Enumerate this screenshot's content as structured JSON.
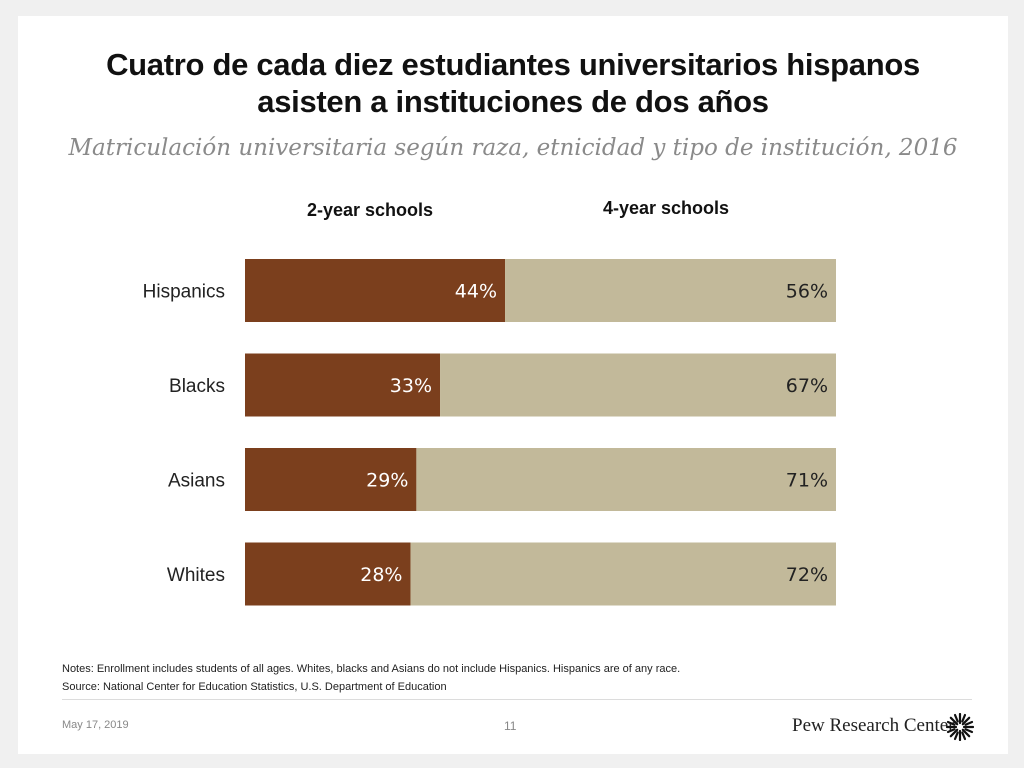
{
  "title_line1": "Cuatro de cada diez estudiantes universitarios hispanos",
  "title_line2": "asisten a instituciones de dos años",
  "subtitle": "Matriculación universitaria según raza, etnicidad y tipo de institución, 2016",
  "notes": "Notes: Enrollment includes students of all ages. Whites, blacks and Asians do not include Hispanics. Hispanics are of any race.",
  "source": "Source: National Center for Education Statistics, U.S. Department of Education",
  "footer": {
    "date": "May 17, 2019",
    "page": "11",
    "brand": "Pew Research Center",
    "logo_icon": "pew-sunburst-icon"
  },
  "colors": {
    "two_year": "#7b3f1d",
    "four_year": "#c2b99a",
    "label_text": "#ffffff",
    "category_text": "#222222"
  },
  "chart_data": {
    "type": "bar",
    "orientation": "horizontal",
    "stacked": true,
    "percent_suffix": "%",
    "categories": [
      "Hispanics",
      "Blacks",
      "Asians",
      "Whites"
    ],
    "series": [
      {
        "name": "2-year schools",
        "values": [
          44,
          33,
          29,
          28
        ]
      },
      {
        "name": "4-year schools",
        "values": [
          56,
          67,
          71,
          72
        ]
      }
    ],
    "xlim": [
      0,
      100
    ],
    "grid": false,
    "legend": "column headers above bars"
  }
}
